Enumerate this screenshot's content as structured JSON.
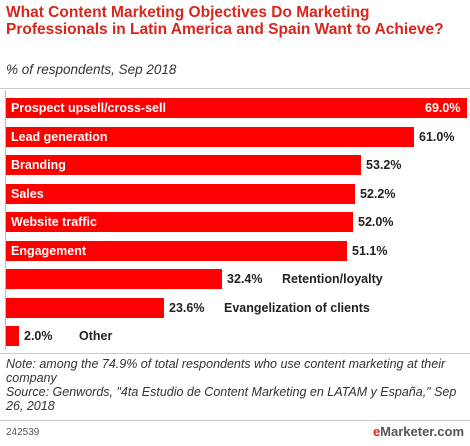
{
  "title": "What Content Marketing Objectives Do Marketing Professionals in Latin America and Spain Want to Achieve?",
  "subtitle": "% of respondents, Sep 2018",
  "chart_data": {
    "type": "bar",
    "orientation": "horizontal",
    "categories": [
      "Prospect upsell/cross-sell",
      "Lead generation",
      "Branding",
      "Sales",
      "Website traffic",
      "Engagement",
      "Retention/loyalty",
      "Evangelization of clients",
      "Other"
    ],
    "values": [
      69.0,
      61.0,
      53.2,
      52.2,
      52.0,
      51.1,
      32.4,
      23.6,
      2.0
    ],
    "value_labels": [
      "69.0%",
      "61.0%",
      "53.2%",
      "52.2%",
      "52.0%",
      "51.1%",
      "32.4%",
      "23.6%",
      "2.0%"
    ],
    "xlim": [
      0,
      69.0
    ],
    "bar_color": "#ff0000"
  },
  "note": "Note: among the 74.9% of total respondents who use content marketing at their company",
  "source": "Source: Genwords, \"4ta Estudio de Content Marketing en LATAM y España,\" Sep 26, 2018",
  "chart_id": "242539",
  "brand": {
    "prefix": "e",
    "name": "Marketer",
    "suffix": ".com"
  },
  "colors": {
    "title": "#d9261c",
    "bar": "#ff0000"
  }
}
